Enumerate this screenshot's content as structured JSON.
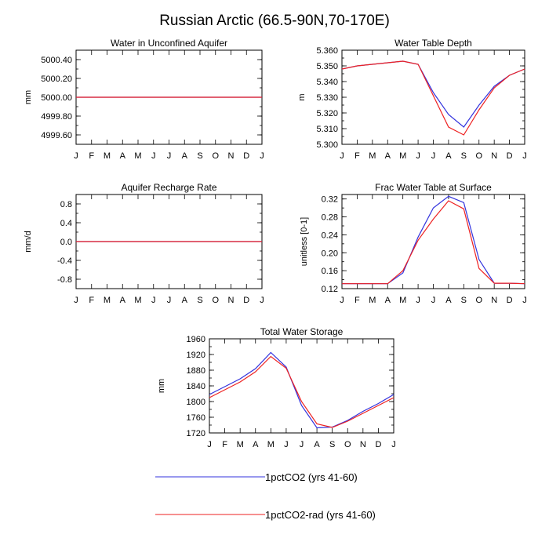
{
  "title": "Russian Arctic (66.5-90N,70-170E)",
  "colors": {
    "series1": "#3333dd",
    "series2": "#ee2222"
  },
  "legend": [
    {
      "label": "1pctCO2 (yrs 41-60)",
      "color": "#3333dd"
    },
    {
      "label": "1pctCO2-rad (yrs 41-60)",
      "color": "#ee2222"
    }
  ],
  "chart_data": [
    {
      "type": "line",
      "title": "Water in Unconfined Aquifer",
      "xlabel": "",
      "ylabel": "mm",
      "categories": [
        "J",
        "F",
        "M",
        "A",
        "M",
        "J",
        "J",
        "A",
        "S",
        "O",
        "N",
        "D",
        "J"
      ],
      "ylim": [
        4999.5,
        5000.5
      ],
      "yticks": [
        4999.6,
        4999.8,
        5000.0,
        5000.2,
        5000.4
      ],
      "ytick_labels": [
        "4999.60",
        "4999.80",
        "5000.00",
        "5000.20",
        "5000.40"
      ],
      "series": [
        {
          "name": "1pctCO2 (yrs 41-60)",
          "values": [
            5000,
            5000,
            5000,
            5000,
            5000,
            5000,
            5000,
            5000,
            5000,
            5000,
            5000,
            5000,
            5000
          ]
        },
        {
          "name": "1pctCO2-rad (yrs 41-60)",
          "values": [
            5000,
            5000,
            5000,
            5000,
            5000,
            5000,
            5000,
            5000,
            5000,
            5000,
            5000,
            5000,
            5000
          ]
        }
      ]
    },
    {
      "type": "line",
      "title": "Water Table Depth",
      "xlabel": "",
      "ylabel": "m",
      "categories": [
        "J",
        "F",
        "M",
        "A",
        "M",
        "J",
        "J",
        "A",
        "S",
        "O",
        "N",
        "D",
        "J"
      ],
      "ylim": [
        5.3,
        5.36
      ],
      "yticks": [
        5.3,
        5.31,
        5.32,
        5.33,
        5.34,
        5.35,
        5.36
      ],
      "ytick_labels": [
        "5.300",
        "5.310",
        "5.320",
        "5.330",
        "5.340",
        "5.350",
        "5.360"
      ],
      "series": [
        {
          "name": "1pctCO2 (yrs 41-60)",
          "values": [
            5.348,
            5.35,
            5.351,
            5.352,
            5.353,
            5.351,
            5.333,
            5.319,
            5.311,
            5.325,
            5.337,
            5.344,
            5.348
          ]
        },
        {
          "name": "1pctCO2-rad (yrs 41-60)",
          "values": [
            5.348,
            5.35,
            5.351,
            5.352,
            5.353,
            5.351,
            5.331,
            5.311,
            5.306,
            5.322,
            5.336,
            5.344,
            5.348
          ]
        }
      ]
    },
    {
      "type": "line",
      "title": "Aquifer Recharge Rate",
      "xlabel": "",
      "ylabel": "mm/d",
      "categories": [
        "J",
        "F",
        "M",
        "A",
        "M",
        "J",
        "J",
        "A",
        "S",
        "O",
        "N",
        "D",
        "J"
      ],
      "ylim": [
        -1.0,
        1.0
      ],
      "yticks": [
        -0.8,
        -0.4,
        0.0,
        0.4,
        0.8
      ],
      "ytick_labels": [
        "-0.8",
        "-0.4",
        "0.0",
        "0.4",
        "0.8"
      ],
      "series": [
        {
          "name": "1pctCO2 (yrs 41-60)",
          "values": [
            0,
            0,
            0,
            0,
            0,
            0,
            0,
            0,
            0,
            0,
            0,
            0,
            0
          ]
        },
        {
          "name": "1pctCO2-rad (yrs 41-60)",
          "values": [
            0,
            0,
            0,
            0,
            0,
            0,
            0,
            0,
            0,
            0,
            0,
            0,
            0
          ]
        }
      ]
    },
    {
      "type": "line",
      "title": "Frac Water Table at Surface",
      "xlabel": "",
      "ylabel": "unitless [0-1]",
      "categories": [
        "J",
        "F",
        "M",
        "A",
        "M",
        "J",
        "J",
        "A",
        "S",
        "O",
        "N",
        "D",
        "J"
      ],
      "ylim": [
        0.12,
        0.33
      ],
      "yticks": [
        0.12,
        0.16,
        0.2,
        0.24,
        0.28,
        0.32
      ],
      "ytick_labels": [
        "0.12",
        "0.16",
        "0.20",
        "0.24",
        "0.28",
        "0.32"
      ],
      "series": [
        {
          "name": "1pctCO2 (yrs 41-60)",
          "values": [
            0.131,
            0.131,
            0.131,
            0.131,
            0.155,
            0.235,
            0.3,
            0.326,
            0.312,
            0.185,
            0.132,
            0.132,
            0.131
          ]
        },
        {
          "name": "1pctCO2-rad (yrs 41-60)",
          "values": [
            0.131,
            0.131,
            0.131,
            0.131,
            0.16,
            0.228,
            0.275,
            0.316,
            0.298,
            0.165,
            0.132,
            0.132,
            0.131
          ]
        }
      ]
    },
    {
      "type": "line",
      "title": "Total Water Storage",
      "xlabel": "",
      "ylabel": "mm",
      "categories": [
        "J",
        "F",
        "M",
        "A",
        "M",
        "J",
        "J",
        "A",
        "S",
        "O",
        "N",
        "D",
        "J"
      ],
      "ylim": [
        1720,
        1960
      ],
      "yticks": [
        1720,
        1760,
        1800,
        1840,
        1880,
        1920,
        1960
      ],
      "ytick_labels": [
        "1720",
        "1760",
        "1800",
        "1840",
        "1880",
        "1920",
        "1960"
      ],
      "series": [
        {
          "name": "1pctCO2 (yrs 41-60)",
          "values": [
            1818,
            1838,
            1858,
            1884,
            1925,
            1888,
            1790,
            1733,
            1735,
            1752,
            1775,
            1795,
            1818
          ]
        },
        {
          "name": "1pctCO2-rad (yrs 41-60)",
          "values": [
            1810,
            1830,
            1850,
            1876,
            1915,
            1885,
            1800,
            1743,
            1734,
            1750,
            1770,
            1790,
            1810
          ]
        }
      ]
    }
  ]
}
